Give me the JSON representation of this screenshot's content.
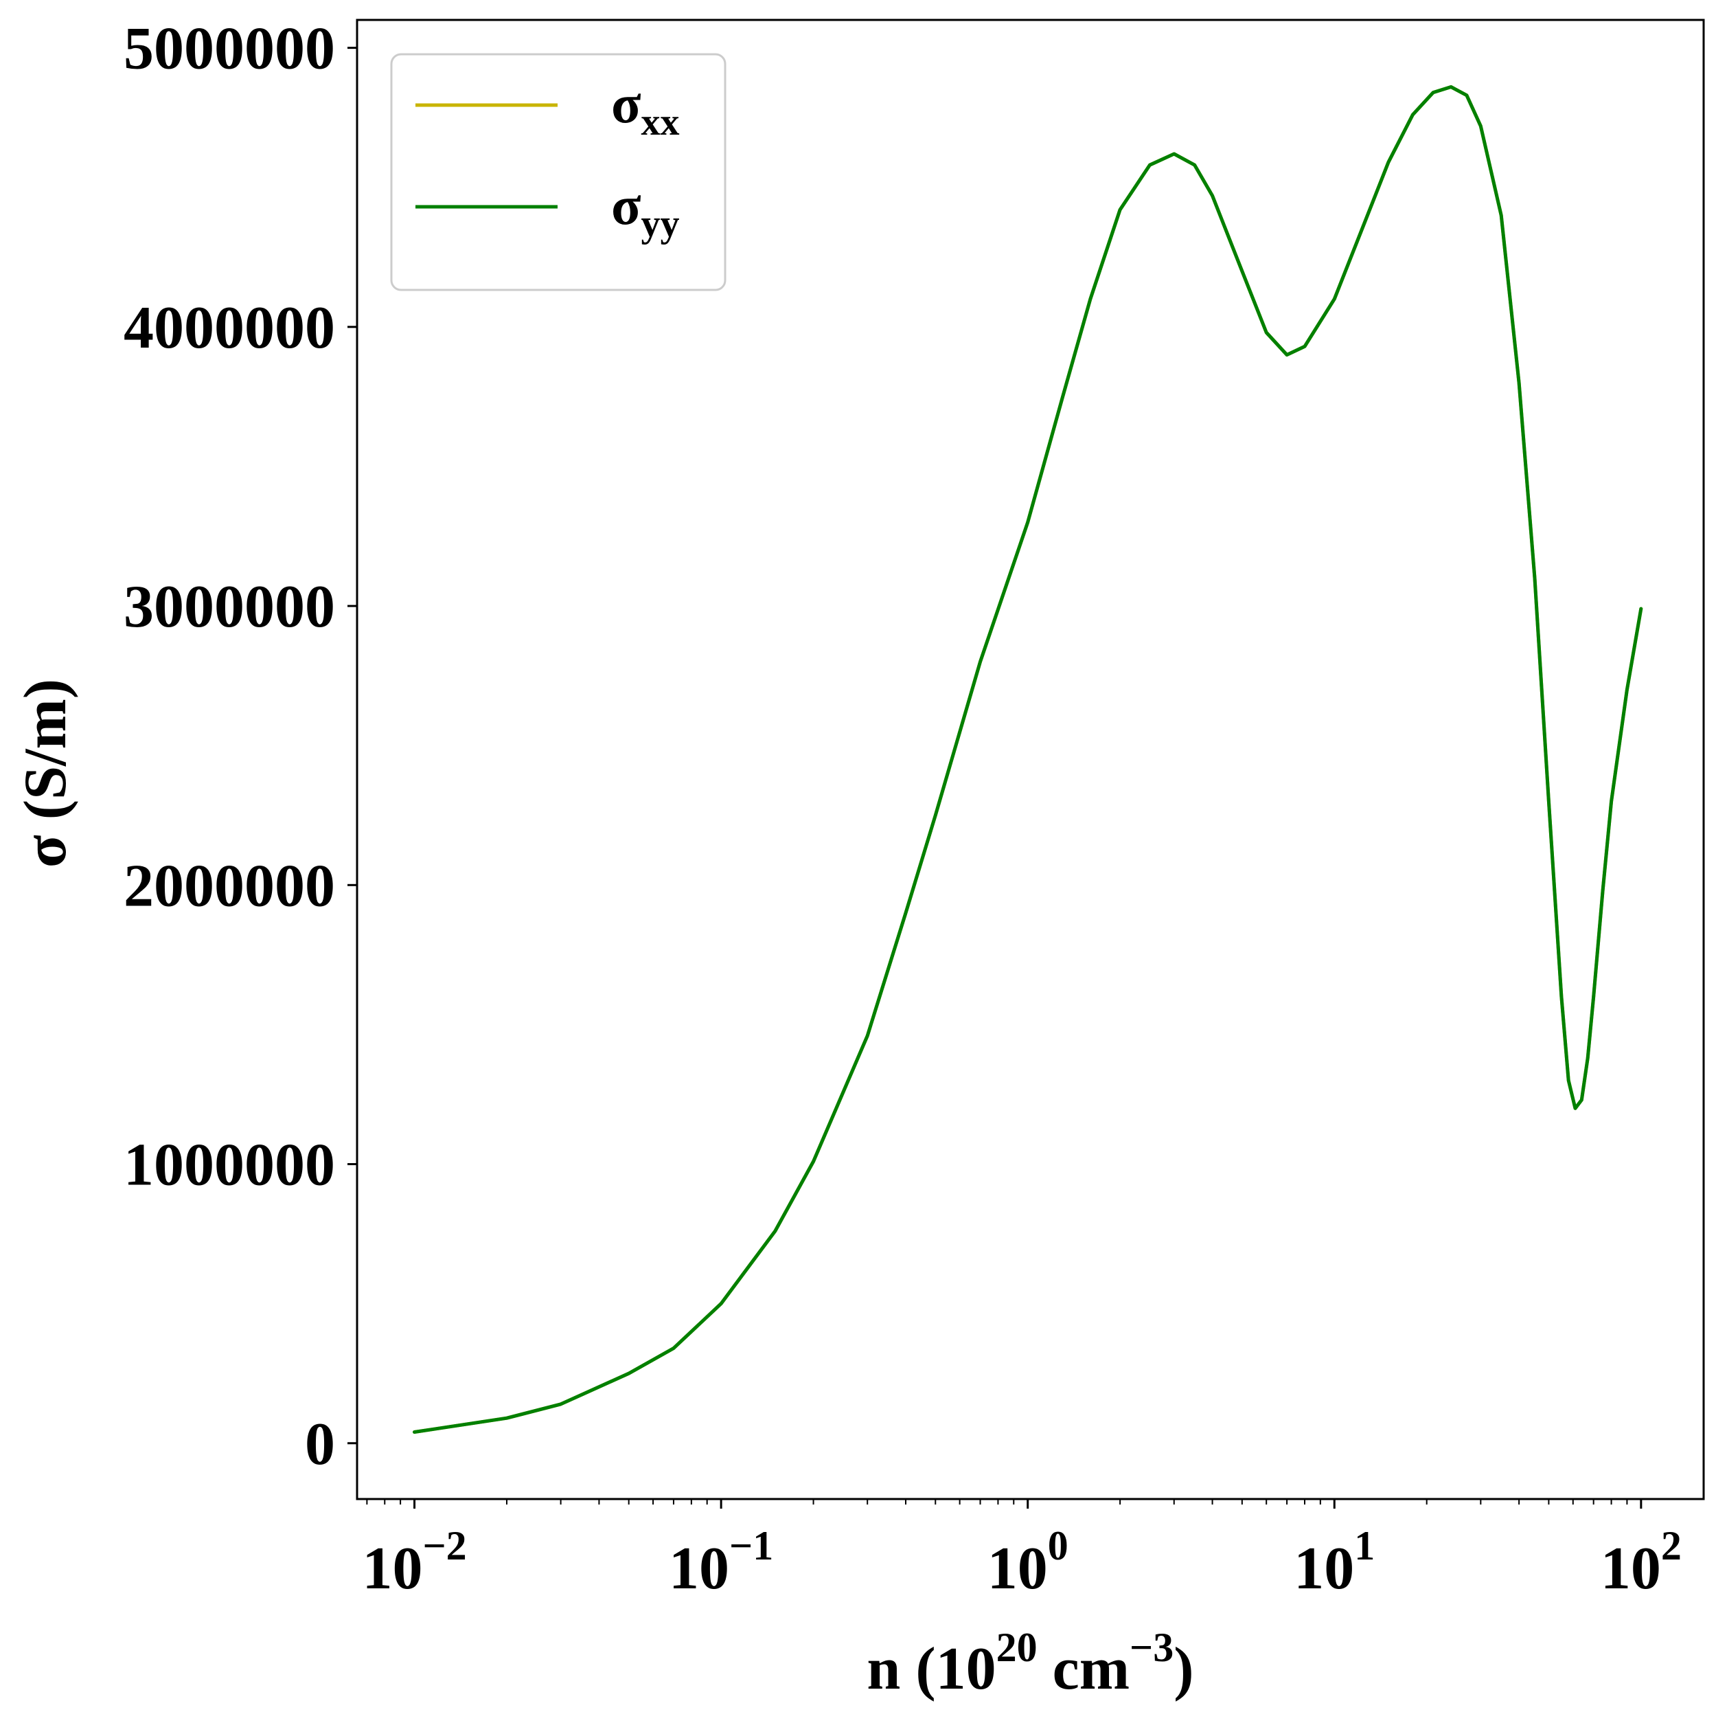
{
  "chart_data": {
    "type": "line",
    "title": "",
    "x_scale": "log",
    "xlim": [
      0.0065,
      160
    ],
    "ylim": [
      -200000,
      5100000
    ],
    "x_ticks": [
      {
        "value": 0.01,
        "base": "10",
        "exp": "−2"
      },
      {
        "value": 0.1,
        "base": "10",
        "exp": "−1"
      },
      {
        "value": 1,
        "base": "10",
        "exp": "0"
      },
      {
        "value": 10,
        "base": "10",
        "exp": "1"
      },
      {
        "value": 100,
        "base": "10",
        "exp": "2"
      }
    ],
    "y_ticks": [
      0,
      1000000,
      2000000,
      3000000,
      4000000,
      5000000
    ],
    "y_tick_labels": [
      "0",
      "1000000",
      "2000000",
      "3000000",
      "4000000",
      "5000000"
    ],
    "xlabel": {
      "pre": "n (10",
      "sup1": "20",
      "mid": " cm",
      "sup2": "−3",
      "post": ")"
    },
    "ylabel": "σ (S/m)",
    "grid": false,
    "legend_position": "top-left",
    "series": [
      {
        "name": "xx",
        "label_base": "σ",
        "label_sub": "xx",
        "color": "#c8b400",
        "x": [
          0.01,
          0.02,
          0.03,
          0.05,
          0.07,
          0.1,
          0.15,
          0.2,
          0.3,
          0.4,
          0.5,
          0.7,
          1.0,
          1.3,
          1.6,
          2.0,
          2.5,
          3.0,
          3.5,
          4.0,
          5.0,
          6.0,
          7.0,
          8.0,
          10.0,
          12.0,
          15.0,
          18.0,
          21.0,
          24.0,
          27.0,
          30.0,
          35.0,
          40.0,
          45.0,
          50.0,
          55.0,
          58.0,
          61.0,
          64.0,
          67.0,
          70.0,
          75.0,
          80.0,
          90.0,
          100.0
        ],
        "values": [
          40000,
          90000,
          140000,
          250000,
          340000,
          500000,
          760000,
          1010000,
          1460000,
          1900000,
          2250000,
          2800000,
          3300000,
          3750000,
          4100000,
          4420000,
          4580000,
          4620000,
          4580000,
          4470000,
          4200000,
          3980000,
          3900000,
          3930000,
          4100000,
          4320000,
          4590000,
          4760000,
          4840000,
          4860000,
          4830000,
          4720000,
          4400000,
          3800000,
          3100000,
          2300000,
          1600000,
          1300000,
          1200000,
          1230000,
          1380000,
          1600000,
          1980000,
          2300000,
          2700000,
          2990000
        ]
      },
      {
        "name": "yy",
        "label_base": "σ",
        "label_sub": "yy",
        "color": "#008000",
        "x": [
          0.01,
          0.02,
          0.03,
          0.05,
          0.07,
          0.1,
          0.15,
          0.2,
          0.3,
          0.4,
          0.5,
          0.7,
          1.0,
          1.3,
          1.6,
          2.0,
          2.5,
          3.0,
          3.5,
          4.0,
          5.0,
          6.0,
          7.0,
          8.0,
          10.0,
          12.0,
          15.0,
          18.0,
          21.0,
          24.0,
          27.0,
          30.0,
          35.0,
          40.0,
          45.0,
          50.0,
          55.0,
          58.0,
          61.0,
          64.0,
          67.0,
          70.0,
          75.0,
          80.0,
          90.0,
          100.0
        ],
        "values": [
          40000,
          90000,
          140000,
          250000,
          340000,
          500000,
          760000,
          1010000,
          1460000,
          1900000,
          2250000,
          2800000,
          3300000,
          3750000,
          4100000,
          4420000,
          4580000,
          4620000,
          4580000,
          4470000,
          4200000,
          3980000,
          3900000,
          3930000,
          4100000,
          4320000,
          4590000,
          4760000,
          4840000,
          4860000,
          4830000,
          4720000,
          4400000,
          3800000,
          3100000,
          2300000,
          1600000,
          1300000,
          1200000,
          1230000,
          1380000,
          1600000,
          1980000,
          2300000,
          2700000,
          2990000
        ]
      }
    ]
  }
}
